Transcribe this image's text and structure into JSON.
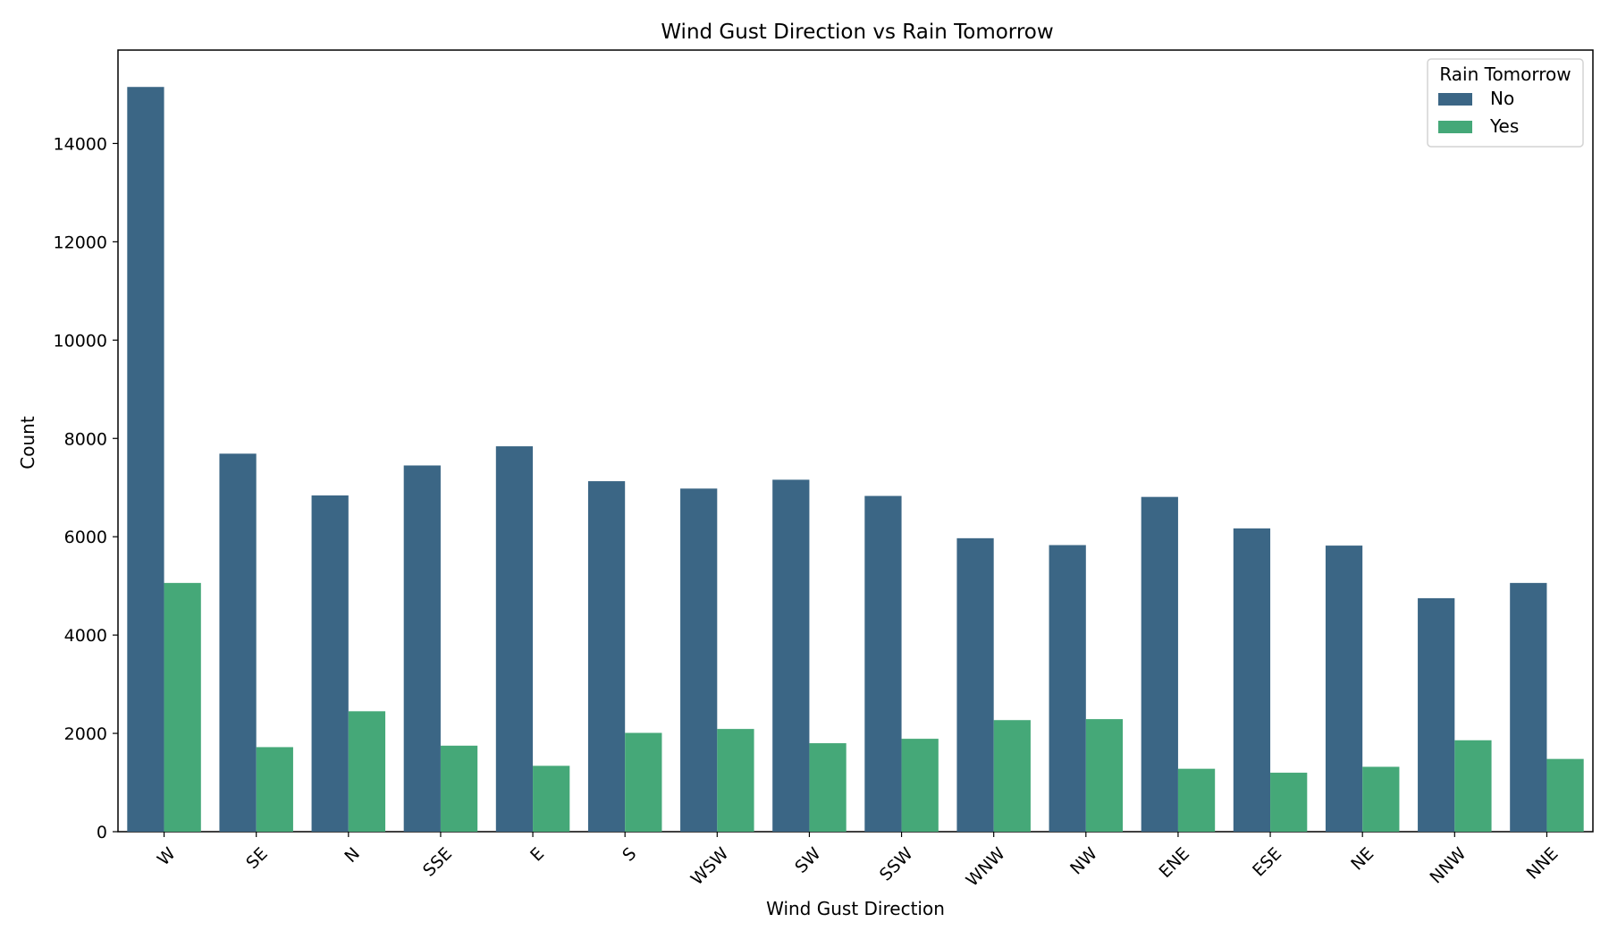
{
  "chart_data": {
    "type": "bar",
    "title": "Wind Gust Direction vs Rain Tomorrow",
    "xlabel": "Wind Gust Direction",
    "ylabel": "Count",
    "categories": [
      "W",
      "SE",
      "N",
      "SSE",
      "E",
      "S",
      "WSW",
      "SW",
      "SSW",
      "WNW",
      "NW",
      "ENE",
      "ESE",
      "NE",
      "NNW",
      "NNE"
    ],
    "series": [
      {
        "name": "No",
        "color": "#3b6685",
        "values": [
          15150,
          7690,
          6840,
          7450,
          7840,
          7130,
          6980,
          7160,
          6830,
          5970,
          5830,
          6810,
          6170,
          5820,
          4750,
          5060
        ]
      },
      {
        "name": "Yes",
        "color": "#45a878",
        "values": [
          5060,
          1720,
          2450,
          1750,
          1340,
          2010,
          2090,
          1800,
          1890,
          2270,
          2290,
          1280,
          1200,
          1320,
          1860,
          1480
        ]
      }
    ],
    "ylim": [
      0,
      15900
    ],
    "yticks": [
      0,
      2000,
      4000,
      6000,
      8000,
      10000,
      12000,
      14000
    ],
    "legend": {
      "title": "Rain Tomorrow",
      "placement": "top-right"
    },
    "grid": false
  }
}
